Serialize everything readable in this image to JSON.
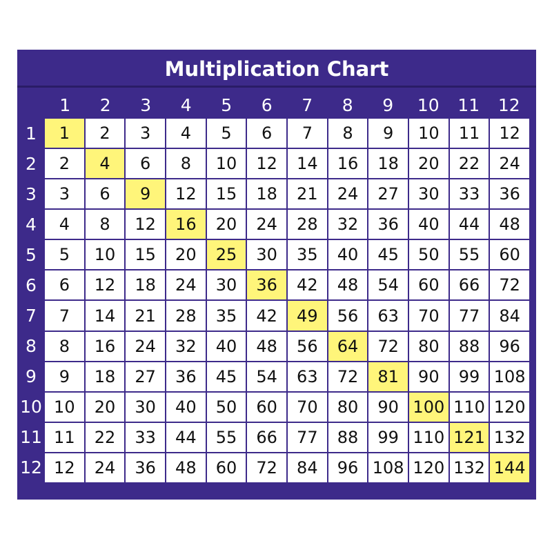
{
  "title": "Multiplication Chart",
  "colors": {
    "background": "#3d2a8a",
    "highlight": "#fff57a",
    "cell": "#ffffff"
  },
  "column_headers": [
    "1",
    "2",
    "3",
    "4",
    "5",
    "6",
    "7",
    "8",
    "9",
    "10",
    "11",
    "12"
  ],
  "row_headers": [
    "1",
    "2",
    "3",
    "4",
    "5",
    "6",
    "7",
    "8",
    "9",
    "10",
    "11",
    "12"
  ],
  "rows": [
    [
      "1",
      "2",
      "3",
      "4",
      "5",
      "6",
      "7",
      "8",
      "9",
      "10",
      "11",
      "12"
    ],
    [
      "2",
      "4",
      "6",
      "8",
      "10",
      "12",
      "14",
      "16",
      "18",
      "20",
      "22",
      "24"
    ],
    [
      "3",
      "6",
      "9",
      "12",
      "15",
      "18",
      "21",
      "24",
      "27",
      "30",
      "33",
      "36"
    ],
    [
      "4",
      "8",
      "12",
      "16",
      "20",
      "24",
      "28",
      "32",
      "36",
      "40",
      "44",
      "48"
    ],
    [
      "5",
      "10",
      "15",
      "20",
      "25",
      "30",
      "35",
      "40",
      "45",
      "50",
      "55",
      "60"
    ],
    [
      "6",
      "12",
      "18",
      "24",
      "30",
      "36",
      "42",
      "48",
      "54",
      "60",
      "66",
      "72"
    ],
    [
      "7",
      "14",
      "21",
      "28",
      "35",
      "42",
      "49",
      "56",
      "63",
      "70",
      "77",
      "84"
    ],
    [
      "8",
      "16",
      "24",
      "32",
      "40",
      "48",
      "56",
      "64",
      "72",
      "80",
      "88",
      "96"
    ],
    [
      "9",
      "18",
      "27",
      "36",
      "45",
      "54",
      "63",
      "72",
      "81",
      "90",
      "99",
      "108"
    ],
    [
      "10",
      "20",
      "30",
      "40",
      "50",
      "60",
      "70",
      "80",
      "90",
      "100",
      "110",
      "120"
    ],
    [
      "11",
      "22",
      "33",
      "44",
      "55",
      "66",
      "77",
      "88",
      "99",
      "110",
      "121",
      "132"
    ],
    [
      "12",
      "24",
      "36",
      "48",
      "60",
      "72",
      "84",
      "96",
      "108",
      "120",
      "132",
      "144"
    ]
  ],
  "highlighted": "diagonal (squares)"
}
